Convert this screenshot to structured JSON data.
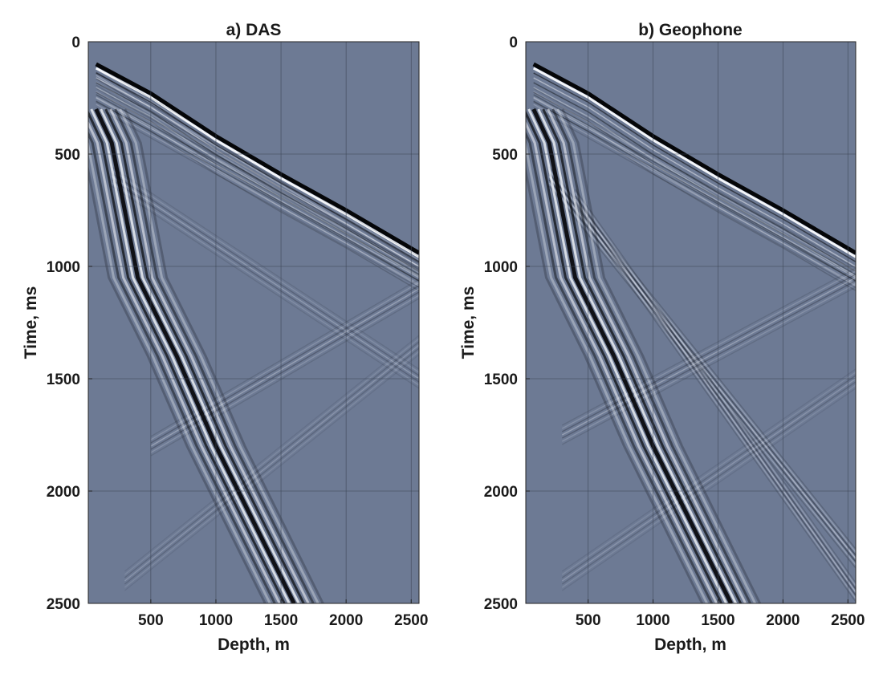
{
  "colors": {
    "background": "#6d7a94",
    "trace_dark": "#050608",
    "trace_light": "#f4f6fa",
    "grid": "#3c4454"
  },
  "chart_data": [
    {
      "type": "heatmap",
      "title": "a) DAS",
      "xlabel": "Depth, m",
      "ylabel": "Time, ms",
      "xlim": [
        20,
        2560
      ],
      "ylim": [
        2500,
        0
      ],
      "x_ticks": [
        500,
        1000,
        1500,
        2000,
        2500
      ],
      "y_ticks": [
        0,
        500,
        1000,
        1500,
        2000,
        2500
      ],
      "grid": true,
      "events": [
        {
          "kind": "first-break",
          "x": [
            80,
            500,
            1000,
            1500,
            2000,
            2560
          ],
          "y": [
            100,
            230,
            420,
            590,
            750,
            940
          ],
          "strength": 1.0
        },
        {
          "kind": "linear",
          "x": [
            80,
            2560
          ],
          "y": [
            250,
            1050
          ],
          "strength": 0.35
        },
        {
          "kind": "linear",
          "x": [
            80,
            2560
          ],
          "y": [
            150,
            1000
          ],
          "strength": 0.3
        },
        {
          "kind": "linear",
          "x": [
            200,
            2560
          ],
          "y": [
            600,
            1500
          ],
          "strength": 0.25
        },
        {
          "kind": "linear",
          "x": [
            500,
            2560
          ],
          "y": [
            1800,
            1100
          ],
          "strength": 0.3
        },
        {
          "kind": "linear",
          "x": [
            300,
            2560
          ],
          "y": [
            2400,
            1350
          ],
          "strength": 0.2
        },
        {
          "kind": "tube-wave",
          "x": [
            80,
            200,
            400,
            700,
            1000,
            1600
          ],
          "y": [
            300,
            450,
            1050,
            1400,
            1800,
            2500
          ],
          "strength": 0.9
        }
      ]
    },
    {
      "type": "heatmap",
      "title": "b) Geophone",
      "xlabel": "Depth, m",
      "ylabel": "Time, ms",
      "xlim": [
        20,
        2560
      ],
      "ylim": [
        2500,
        0
      ],
      "x_ticks": [
        500,
        1000,
        1500,
        2000,
        2500
      ],
      "y_ticks": [
        0,
        500,
        1000,
        1500,
        2000,
        2500
      ],
      "grid": true,
      "events": [
        {
          "kind": "first-break",
          "x": [
            80,
            500,
            1000,
            1500,
            2000,
            2560
          ],
          "y": [
            100,
            230,
            420,
            590,
            750,
            940
          ],
          "strength": 1.0
        },
        {
          "kind": "linear",
          "x": [
            80,
            2560
          ],
          "y": [
            250,
            1050
          ],
          "strength": 0.35
        },
        {
          "kind": "linear",
          "x": [
            200,
            2560
          ],
          "y": [
            600,
            2300
          ],
          "strength": 0.45
        },
        {
          "kind": "linear",
          "x": [
            400,
            2560
          ],
          "y": [
            700,
            2450
          ],
          "strength": 0.4
        },
        {
          "kind": "linear",
          "x": [
            300,
            2560
          ],
          "y": [
            1750,
            1050
          ],
          "strength": 0.3
        },
        {
          "kind": "linear",
          "x": [
            300,
            2560
          ],
          "y": [
            2400,
            1500
          ],
          "strength": 0.2
        },
        {
          "kind": "tube-wave",
          "x": [
            80,
            200,
            400,
            700,
            1000,
            1600
          ],
          "y": [
            300,
            450,
            1050,
            1400,
            1800,
            2500
          ],
          "strength": 0.9
        }
      ]
    }
  ]
}
